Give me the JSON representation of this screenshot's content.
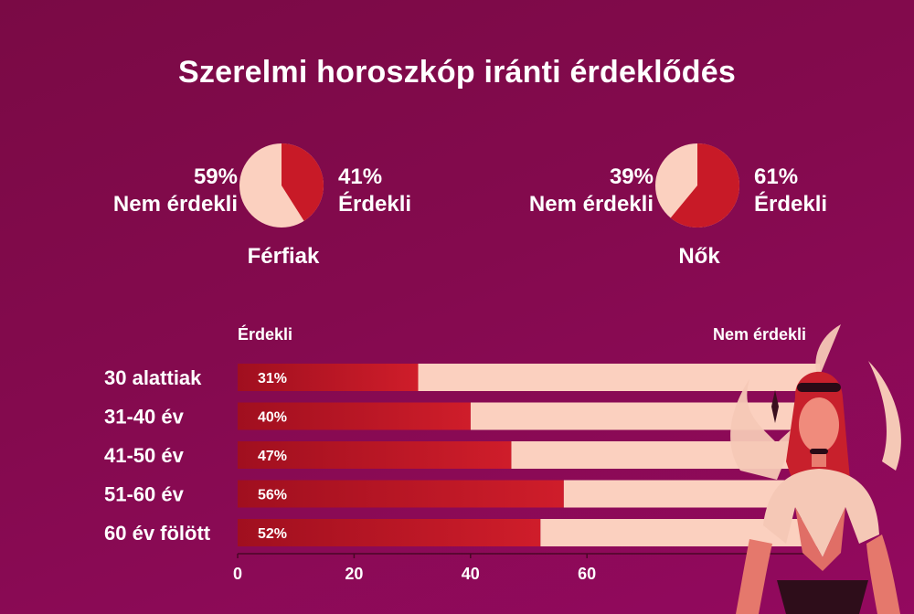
{
  "title": "Szerelmi horoszkóp iránti érdeklődés",
  "pies": [
    {
      "caption": "Férfiak",
      "left_pct": "59%",
      "left_label": "Nem érdekli",
      "right_pct": "41%",
      "right_label": "Érdekli",
      "interested": 41
    },
    {
      "caption": "Nők",
      "left_pct": "39%",
      "left_label": "Nem érdekli",
      "right_pct": "61%",
      "right_label": "Érdekli",
      "interested": 61
    }
  ],
  "legend": {
    "left": "Érdekli",
    "right": "Nem érdekli"
  },
  "colors": {
    "interested": "#c81a27",
    "interested_dark": "#a00f1f",
    "not_interested": "#fbd0bf",
    "background": "#840a4e"
  },
  "chart_data": {
    "type": "bar",
    "orientation": "horizontal",
    "stacked": true,
    "categories": [
      "30 alattiak",
      "31-40 év",
      "41-50 év",
      "51-60 év",
      "60 év fölött"
    ],
    "series": [
      {
        "name": "Érdekli",
        "values": [
          31,
          40,
          47,
          56,
          52
        ]
      },
      {
        "name": "Nem érdekli",
        "values": [
          69,
          60,
          53,
          44,
          48
        ]
      }
    ],
    "value_labels": [
      "31%",
      "40%",
      "47%",
      "56%",
      "52%"
    ],
    "xlim": [
      0,
      100
    ],
    "x_ticks": [
      0,
      20,
      40,
      60
    ],
    "grid": false
  }
}
